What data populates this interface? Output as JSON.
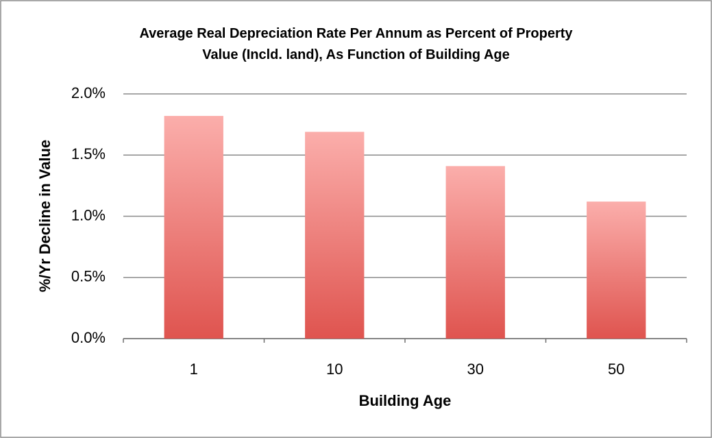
{
  "chart_data": {
    "type": "bar",
    "title": "Average Real Depreciation Rate Per Annum as Percent of Property\nValue (Incld. land), As Function of Building Age",
    "x_label": "Building Age",
    "y_label": "%/Yr Decline in Value",
    "categories": [
      "1",
      "10",
      "30",
      "50"
    ],
    "values": [
      1.82,
      1.69,
      1.41,
      1.12
    ],
    "gradient": [
      "#fbaeab",
      "#df544f"
    ],
    "ylim": [
      0,
      2
    ],
    "yticks": [
      {
        "value": 0,
        "label": "0.0%"
      },
      {
        "value": 0.5,
        "label": "0.5%"
      },
      {
        "value": 1,
        "label": "1.0%"
      },
      {
        "value": 1.5,
        "label": "1.5%"
      },
      {
        "value": 2,
        "label": "2.0%"
      }
    ],
    "grid": true
  }
}
